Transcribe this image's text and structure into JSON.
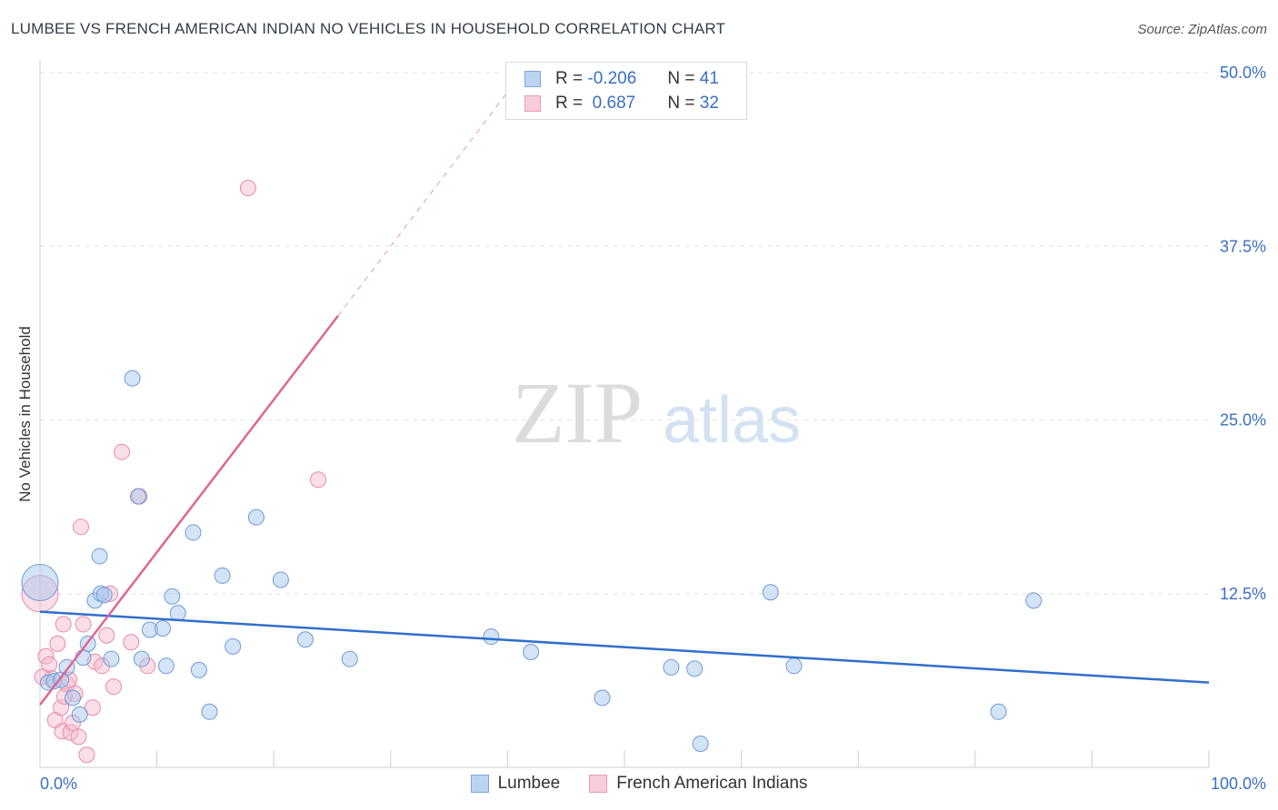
{
  "header": {
    "title": "LUMBEE VS FRENCH AMERICAN INDIAN NO VEHICLES IN HOUSEHOLD CORRELATION CHART",
    "source": "Source: ZipAtlas.com"
  },
  "watermark": {
    "zip": "ZIP",
    "atlas": "atlas"
  },
  "colors": {
    "lumbee_fill": "#a9c7ee",
    "lumbee_stroke": "#6f9bd8",
    "lumbee_line": "#2f6fcc",
    "french_fill": "#f6b9cb",
    "french_stroke": "#e88aa6",
    "french_line": "#e06592",
    "tick_label": "#3a6fc4"
  },
  "legend": {
    "r_label": "R =",
    "n_label": "N =",
    "rows": [
      {
        "r": "-0.206",
        "n": "41"
      },
      {
        "r": " 0.687",
        "n": "32"
      }
    ]
  },
  "chart_data": {
    "type": "scatter",
    "title": "LUMBEE VS FRENCH AMERICAN INDIAN NO VEHICLES IN HOUSEHOLD CORRELATION CHART",
    "xlabel": "",
    "ylabel": "No Vehicles in Household",
    "xlim": [
      0,
      100
    ],
    "ylim": [
      0,
      50
    ],
    "x_tick_labels": [
      "0.0%",
      "100.0%"
    ],
    "y_tick_labels": [
      "12.5%",
      "25.0%",
      "37.5%",
      "50.0%"
    ],
    "y_ticks": [
      12.5,
      25.0,
      37.5,
      50.0
    ],
    "grid": true,
    "legend_position": "top-center",
    "series": [
      {
        "name": "Lumbee",
        "points": [
          [
            0.0,
            13.3
          ],
          [
            0.7,
            6.1
          ],
          [
            1.2,
            6.2
          ],
          [
            1.8,
            6.3
          ],
          [
            2.3,
            7.2
          ],
          [
            2.8,
            5.0
          ],
          [
            3.4,
            3.8
          ],
          [
            3.7,
            7.9
          ],
          [
            4.1,
            8.9
          ],
          [
            4.7,
            12.0
          ],
          [
            5.1,
            15.2
          ],
          [
            5.2,
            12.5
          ],
          [
            5.5,
            12.4
          ],
          [
            6.1,
            7.8
          ],
          [
            7.9,
            28.0
          ],
          [
            8.4,
            19.5
          ],
          [
            8.7,
            7.8
          ],
          [
            9.4,
            9.9
          ],
          [
            10.5,
            10.0
          ],
          [
            10.8,
            7.3
          ],
          [
            11.3,
            12.3
          ],
          [
            11.8,
            11.1
          ],
          [
            13.1,
            16.9
          ],
          [
            13.6,
            7.0
          ],
          [
            14.5,
            4.0
          ],
          [
            15.6,
            13.8
          ],
          [
            16.5,
            8.7
          ],
          [
            18.5,
            18.0
          ],
          [
            20.6,
            13.5
          ],
          [
            22.7,
            9.2
          ],
          [
            26.5,
            7.8
          ],
          [
            38.6,
            9.4
          ],
          [
            42.0,
            8.3
          ],
          [
            48.1,
            5.0
          ],
          [
            54.0,
            7.2
          ],
          [
            56.0,
            7.1
          ],
          [
            56.5,
            1.7
          ],
          [
            62.5,
            12.6
          ],
          [
            64.5,
            7.3
          ],
          [
            82.0,
            4.0
          ],
          [
            85.0,
            12.0
          ]
        ],
        "trend": {
          "x": [
            0,
            100
          ],
          "y": [
            11.2,
            6.1
          ]
        }
      },
      {
        "name": "French American Indians",
        "points": [
          [
            0.0,
            12.5
          ],
          [
            0.5,
            8.0
          ],
          [
            0.8,
            7.4
          ],
          [
            1.0,
            6.4
          ],
          [
            1.3,
            3.4
          ],
          [
            1.5,
            8.9
          ],
          [
            1.8,
            4.3
          ],
          [
            1.9,
            2.6
          ],
          [
            2.0,
            10.3
          ],
          [
            2.1,
            5.1
          ],
          [
            2.3,
            6.0
          ],
          [
            2.5,
            6.3
          ],
          [
            2.6,
            2.5
          ],
          [
            2.8,
            3.2
          ],
          [
            3.0,
            5.3
          ],
          [
            3.3,
            2.2
          ],
          [
            3.5,
            17.3
          ],
          [
            3.7,
            10.3
          ],
          [
            4.0,
            0.9
          ],
          [
            4.5,
            4.3
          ],
          [
            4.7,
            7.6
          ],
          [
            5.3,
            7.3
          ],
          [
            5.7,
            9.5
          ],
          [
            6.0,
            12.5
          ],
          [
            6.3,
            5.8
          ],
          [
            7.0,
            22.7
          ],
          [
            7.8,
            9.0
          ],
          [
            8.5,
            19.5
          ],
          [
            9.2,
            7.3
          ],
          [
            17.8,
            41.7
          ],
          [
            23.8,
            20.7
          ],
          [
            0.2,
            6.5
          ]
        ],
        "trend_solid": {
          "x": [
            0,
            25.5
          ],
          "y": [
            4.5,
            32.5
          ]
        },
        "trend_dashed": {
          "x": [
            25.5,
            40.8
          ],
          "y": [
            32.5,
            49.5
          ]
        }
      }
    ]
  },
  "bottom_legend": [
    {
      "label": "Lumbee"
    },
    {
      "label": "French American Indians"
    }
  ]
}
